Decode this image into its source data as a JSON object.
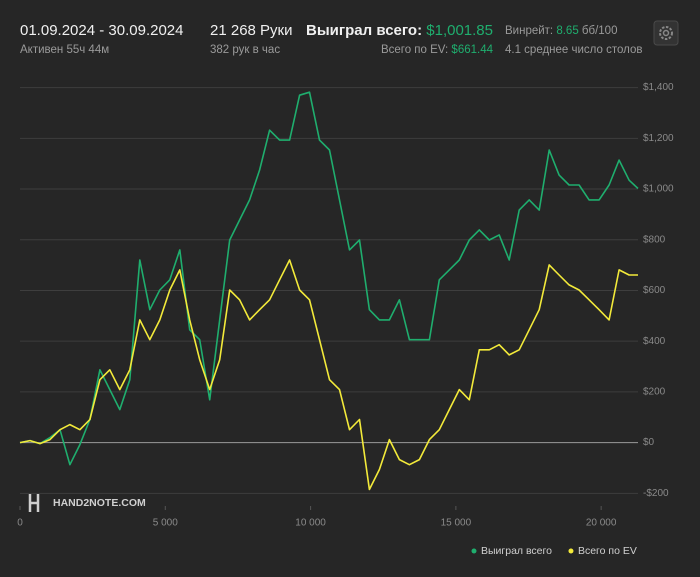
{
  "header": {
    "date_range": "01.09.2024 - 30.09.2024",
    "active": "Активен 55ч 44м",
    "hands": "21 268 Руки",
    "hands_per_hour": "382 рук в час",
    "won_label": "Выиграл всего:",
    "won_value": "$1,001.85",
    "ev_label": "Всего по EV:",
    "ev_value": "$661.44",
    "winrate_label": "Винрейт:",
    "winrate_value": "8.65",
    "winrate_unit": "бб/100",
    "tables": "4.1 среднее число столов",
    "logo": "HAND2NOTE.COM"
  },
  "chart_data": {
    "type": "line",
    "x": [
      0,
      344,
      687,
      1031,
      1375,
      1718,
      2062,
      2405,
      2749,
      3092,
      3436,
      3780,
      4123,
      4467,
      4810,
      5154,
      5498,
      5841,
      6185,
      6528,
      6872,
      7216,
      7559,
      7903,
      8246,
      8590,
      8934,
      9277,
      9621,
      9964,
      10308,
      10652,
      10995,
      11339,
      11682,
      12026,
      12370,
      12713,
      13057,
      13400,
      13744,
      14088,
      14431,
      14775,
      15118,
      15462,
      15806,
      16149,
      16493,
      16836,
      17180,
      17524,
      17867,
      18211,
      18554,
      18898,
      19242,
      19585,
      19929,
      20272,
      20616,
      20960,
      21268
    ],
    "series": [
      {
        "name": "Выиграл всего",
        "color": "#1fae6e",
        "values": [
          0,
          8,
          -4,
          20,
          51,
          -87,
          -8,
          91,
          287,
          209,
          130,
          248,
          720,
          524,
          602,
          642,
          760,
          445,
          406,
          169,
          484,
          799,
          878,
          957,
          1075,
          1232,
          1193,
          1193,
          1370,
          1382,
          1193,
          1154,
          957,
          760,
          799,
          524,
          484,
          484,
          563,
          406,
          406,
          406,
          642,
          681,
          720,
          799,
          839,
          799,
          819,
          720,
          917,
          957,
          917,
          1154,
          1055,
          1016,
          1016,
          957,
          957,
          1016,
          1114,
          1035,
          1002
        ]
      },
      {
        "name": "Всего по EV",
        "color": "#f3ea3a",
        "values": [
          0,
          8,
          -4,
          12,
          51,
          71,
          51,
          91,
          248,
          287,
          209,
          287,
          484,
          406,
          484,
          602,
          681,
          484,
          327,
          209,
          327,
          602,
          563,
          484,
          524,
          563,
          642,
          720,
          602,
          563,
          406,
          248,
          209,
          51,
          91,
          -185,
          -106,
          12,
          -67,
          -87,
          -67,
          12,
          51,
          130,
          209,
          169,
          366,
          366,
          386,
          346,
          366,
          445,
          524,
          701,
          661,
          622,
          602,
          563,
          524,
          484,
          681,
          661,
          661
        ]
      }
    ],
    "xlim": [
      0,
      21268
    ],
    "ylim": [
      -250,
      1430
    ],
    "xticks": [
      0,
      {
        "value": 5000,
        "label": "5 000"
      },
      {
        "value": 10000,
        "label": "10 000"
      },
      {
        "value": 15000,
        "label": "15 000"
      },
      {
        "value": 20000,
        "label": "20 000"
      }
    ],
    "yticks": [
      {
        "value": -200,
        "label": "-$200"
      },
      {
        "value": 0,
        "label": "$0"
      },
      {
        "value": 200,
        "label": "$200"
      },
      {
        "value": 400,
        "label": "$400"
      },
      {
        "value": 600,
        "label": "$600"
      },
      {
        "value": 800,
        "label": "$800"
      },
      {
        "value": 1000,
        "label": "$1,000"
      },
      {
        "value": 1200,
        "label": "$1,200"
      },
      {
        "value": 1400,
        "label": "$1,400"
      }
    ],
    "grid": true,
    "legend": "bottom-right"
  }
}
